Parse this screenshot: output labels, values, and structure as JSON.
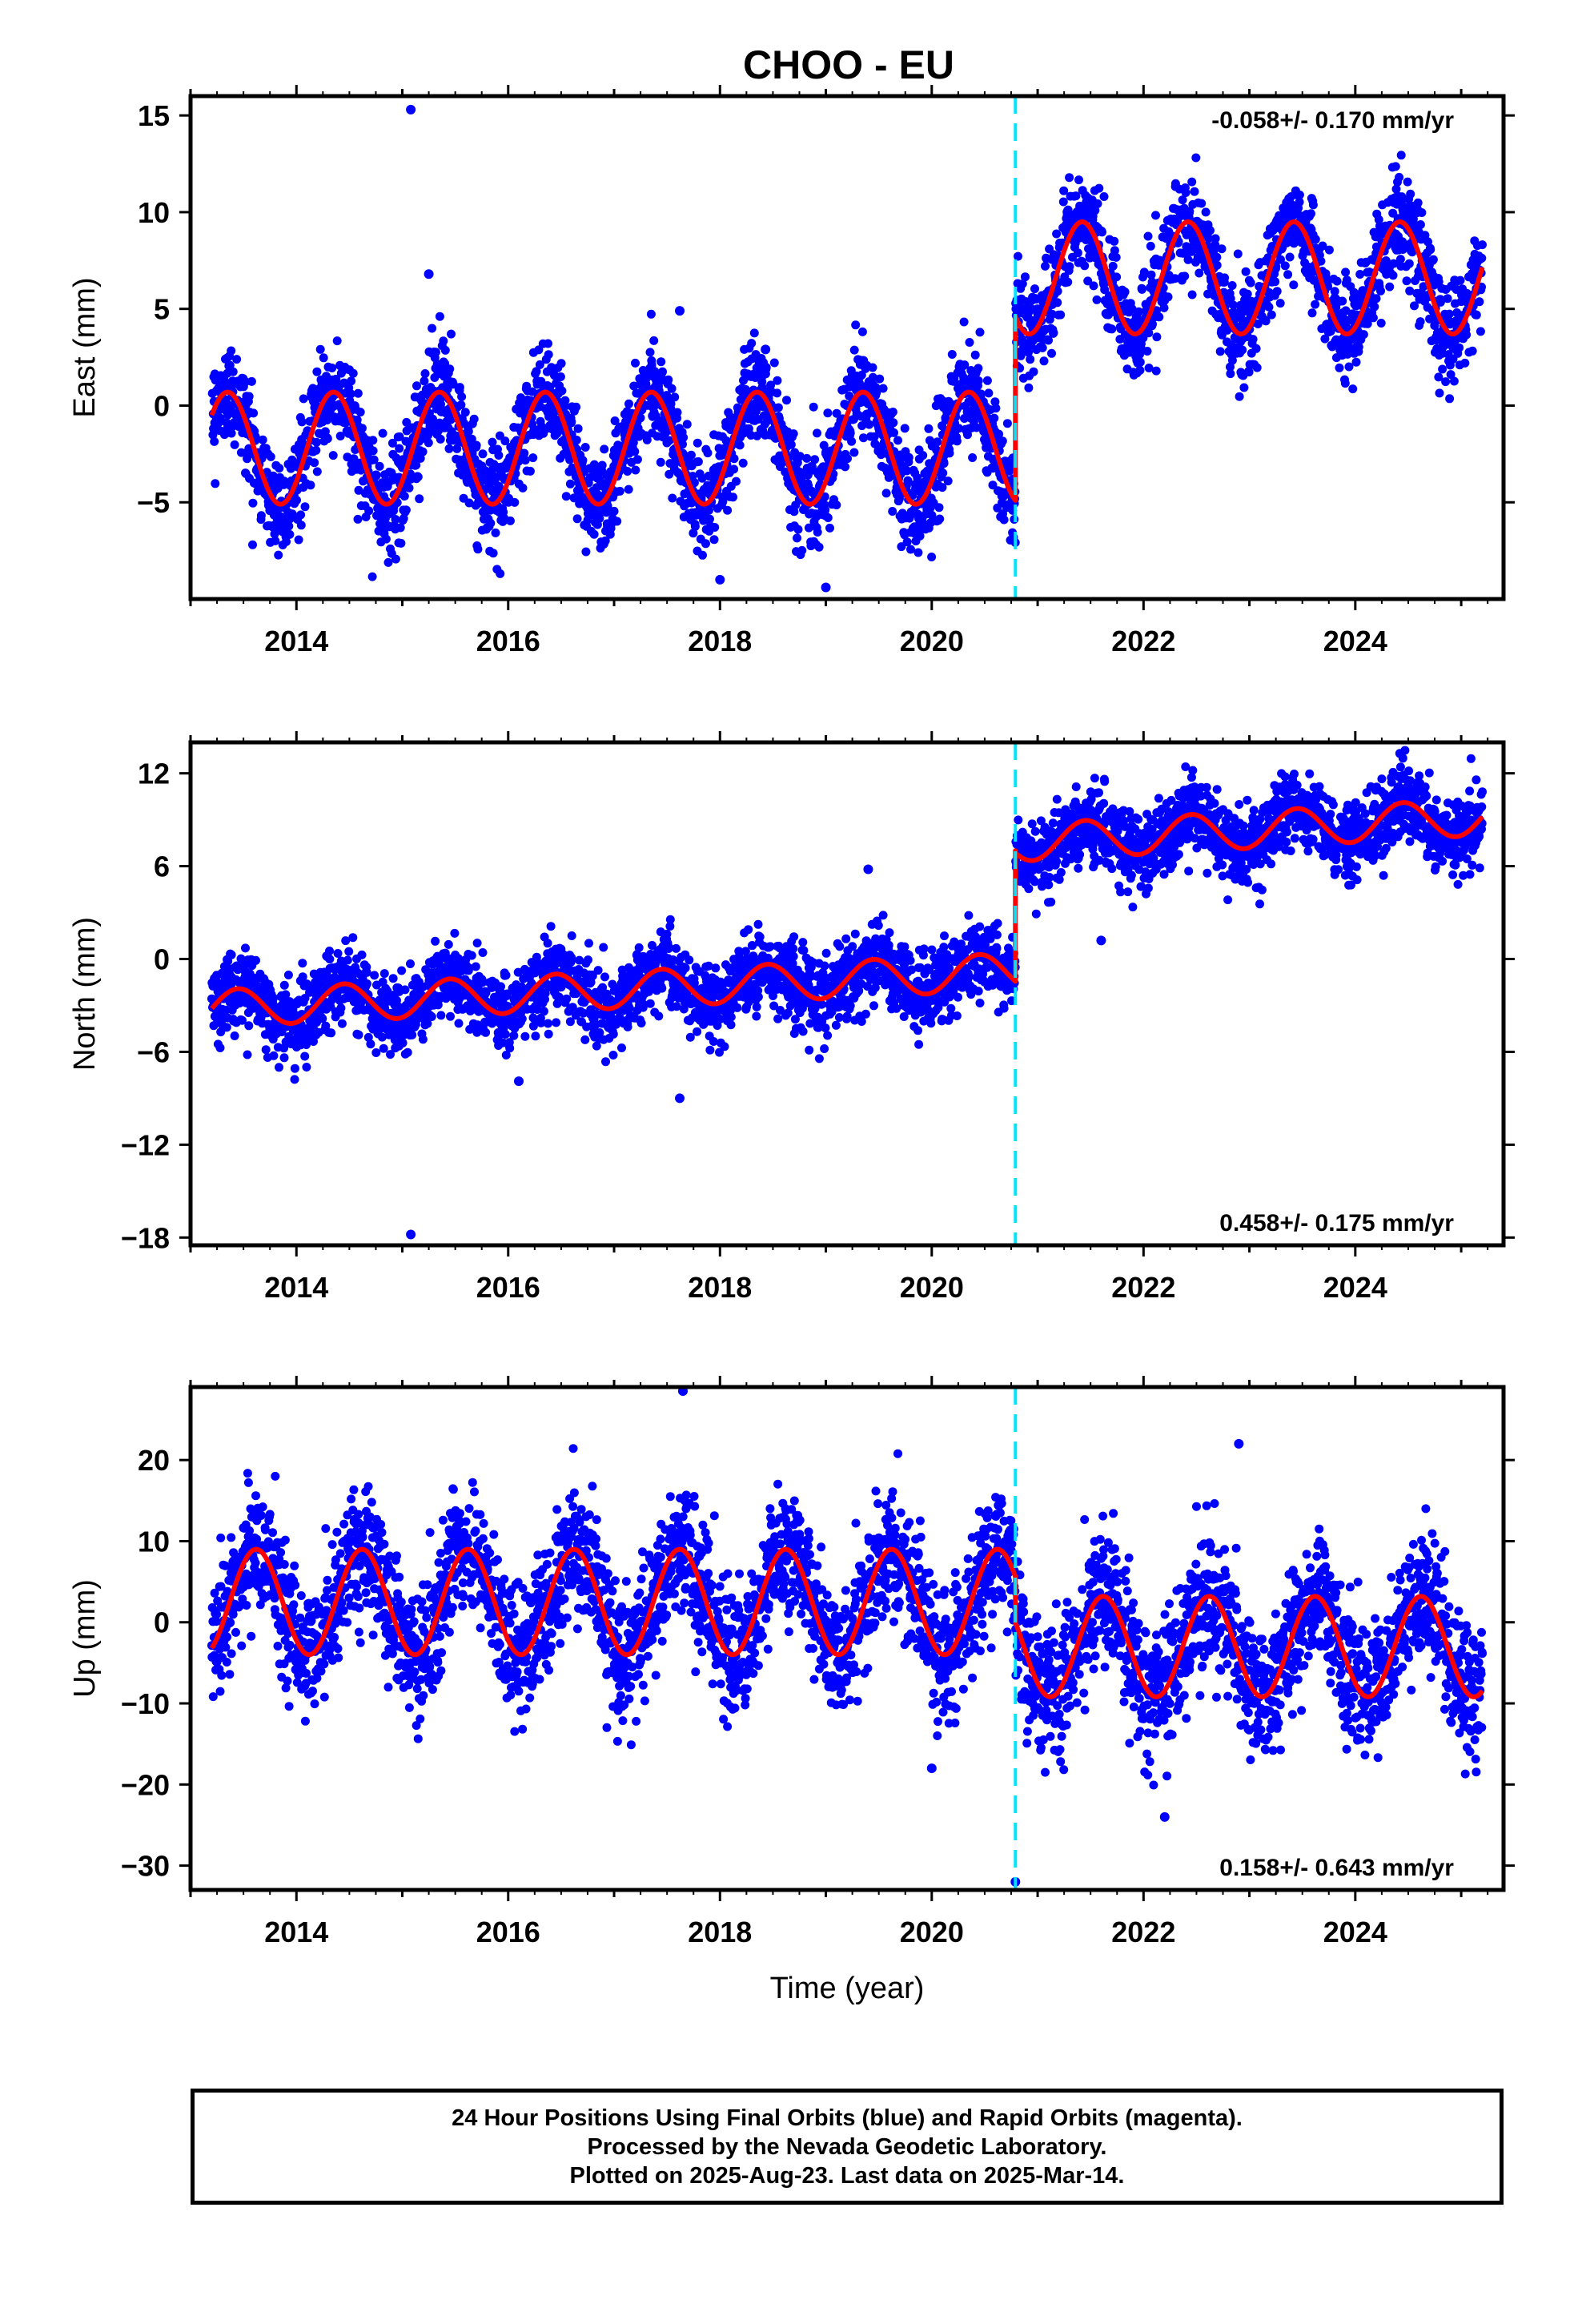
{
  "title": "CHOO - EU",
  "footer": {
    "line1": "24 Hour Positions Using Final Orbits (blue) and Rapid Orbits (magenta).",
    "line2": "Processed by the Nevada Geodetic Laboratory.",
    "line3": "Plotted on 2025-Aug-23. Last data on 2025-Mar-14."
  },
  "colors": {
    "points": "#0000ff",
    "fit": "#ff0000",
    "offset_line": "#00e5ff",
    "frame": "#000000"
  },
  "chart_data": [
    {
      "type": "scatter",
      "name": "east",
      "ylabel": "East (mm)",
      "xlabel": "",
      "xlim": [
        2013.0,
        2025.4
      ],
      "ylim": [
        -10,
        16
      ],
      "yticks": [
        -5,
        0,
        5,
        10,
        15
      ],
      "xticks": [
        2014,
        2016,
        2018,
        2020,
        2022,
        2024
      ],
      "grid": false,
      "rate_label": "-0.058+/- 0.170 mm/yr",
      "rate_position": "top-right",
      "offset_epoch": 2020.79,
      "data_range": [
        2013.2,
        2025.2
      ],
      "model": {
        "before": {
          "mean": -2.2,
          "amp": 2.9,
          "peak": 0.35
        },
        "after": {
          "mean": 6.6,
          "amp": 2.9,
          "peak": 0.42
        },
        "after_start": 4.0
      },
      "noise": 1.3,
      "outliers": [
        [
          2015.08,
          15.3
        ],
        [
          2015.25,
          6.8
        ],
        [
          2017.62,
          4.9
        ],
        [
          2018.43,
          2.9
        ],
        [
          2019.0,
          -9.4
        ],
        [
          2018.0,
          -9.0
        ]
      ]
    },
    {
      "type": "scatter",
      "name": "north",
      "ylabel": "North (mm)",
      "xlabel": "",
      "xlim": [
        2013.0,
        2025.4
      ],
      "ylim": [
        -18.5,
        14
      ],
      "yticks": [
        -18,
        -12,
        -6,
        0,
        6,
        12
      ],
      "xticks": [
        2014,
        2016,
        2018,
        2020,
        2022,
        2024
      ],
      "grid": false,
      "rate_label": "0.458+/- 0.175 mm/yr",
      "rate_position": "bottom-right",
      "offset_epoch": 2020.79,
      "data_range": [
        2013.2,
        2025.2
      ],
      "model": {
        "before": {
          "start": -3.2,
          "end": -0.8,
          "amp": 1.2,
          "peak": 0.45
        },
        "after": {
          "start": 7.5,
          "end": 9.2,
          "amp": 1.2,
          "peak": 0.45
        },
        "after_start": 7.0
      },
      "noise": 1.2,
      "outliers": [
        [
          2015.08,
          -17.8
        ],
        [
          2017.62,
          -9.0
        ],
        [
          2016.1,
          -7.9
        ],
        [
          2021.6,
          1.2
        ],
        [
          2019.4,
          5.8
        ]
      ]
    },
    {
      "type": "scatter",
      "name": "up",
      "ylabel": "Up (mm)",
      "xlabel": "Time (year)",
      "xlim": [
        2013.0,
        2025.4
      ],
      "ylim": [
        -33,
        29
      ],
      "yticks": [
        -30,
        -20,
        -10,
        0,
        10,
        20
      ],
      "xticks": [
        2014,
        2016,
        2018,
        2020,
        2022,
        2024
      ],
      "grid": false,
      "rate_label": "0.158+/- 0.643 mm/yr",
      "rate_position": "bottom-right",
      "offset_epoch": 2020.79,
      "data_range": [
        2013.2,
        2025.2
      ],
      "model": {
        "before": {
          "mean": 2.5,
          "amp": 6.5,
          "peak": 0.62
        },
        "after": {
          "mean": -3.0,
          "amp": 6.2,
          "peak": 0.62
        },
        "after_start": 2.0
      },
      "noise": 4.0,
      "outliers": [
        [
          2017.65,
          28.5
        ],
        [
          2020.79,
          -32.0
        ],
        [
          2022.9,
          22.0
        ],
        [
          2020.0,
          -18.0
        ],
        [
          2022.2,
          -24.0
        ]
      ]
    }
  ]
}
